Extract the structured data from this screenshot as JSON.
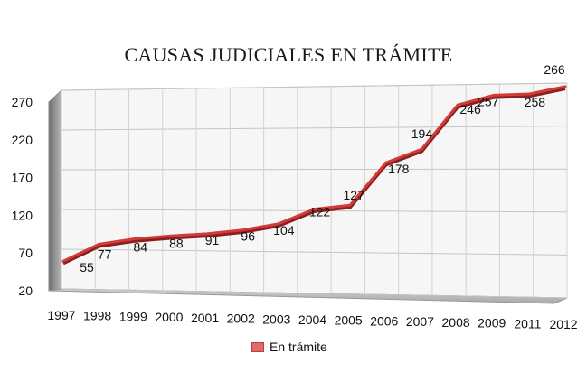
{
  "chart_data": {
    "type": "line",
    "title": "CAUSAS JUDICIALES EN TRÁMITE",
    "categories": [
      "1997",
      "1998",
      "1999",
      "2000",
      "2001",
      "2002",
      "2003",
      "2004",
      "2005",
      "2006",
      "2007",
      "2008",
      "2009",
      "2011",
      "2012"
    ],
    "series": [
      {
        "name": "En trámite",
        "color": "#d33a3a",
        "values": [
          55,
          77,
          84,
          88,
          91,
          96,
          104,
          122,
          127,
          178,
          194,
          246,
          257,
          258,
          266
        ],
        "labels": [
          "55",
          "77",
          "84",
          "88",
          "91",
          "96",
          "104",
          "122",
          "127",
          "178",
          "194",
          "246",
          "257",
          "258",
          "266"
        ]
      }
    ],
    "yticks": [
      20,
      70,
      120,
      170,
      220,
      270
    ],
    "ylim": [
      20,
      270
    ],
    "grid": true,
    "legend_position": "bottom"
  }
}
